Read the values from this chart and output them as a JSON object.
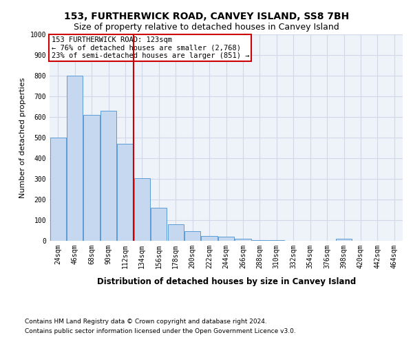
{
  "title1": "153, FURTHERWICK ROAD, CANVEY ISLAND, SS8 7BH",
  "title2": "Size of property relative to detached houses in Canvey Island",
  "xlabel": "Distribution of detached houses by size in Canvey Island",
  "ylabel": "Number of detached properties",
  "categories": [
    "24sqm",
    "46sqm",
    "68sqm",
    "90sqm",
    "112sqm",
    "134sqm",
    "156sqm",
    "178sqm",
    "200sqm",
    "222sqm",
    "244sqm",
    "266sqm",
    "288sqm",
    "310sqm",
    "332sqm",
    "354sqm",
    "376sqm",
    "398sqm",
    "420sqm",
    "442sqm",
    "464sqm"
  ],
  "values": [
    500,
    800,
    610,
    630,
    470,
    305,
    160,
    80,
    47,
    25,
    20,
    10,
    5,
    2,
    1,
    1,
    1,
    10,
    1,
    1,
    1
  ],
  "bar_color": "#c5d8f0",
  "bar_edge_color": "#5b9bd5",
  "grid_color": "#d0d8e8",
  "background_color": "#eef2f9",
  "vline_pos": 4.5,
  "vline_color": "#cc0000",
  "annotation_line1": "153 FURTHERWICK ROAD: 123sqm",
  "annotation_line2": "← 76% of detached houses are smaller (2,768)",
  "annotation_line3": "23% of semi-detached houses are larger (851) →",
  "annotation_box_color": "#cc0000",
  "ylim": [
    0,
    1000
  ],
  "yticks": [
    0,
    100,
    200,
    300,
    400,
    500,
    600,
    700,
    800,
    900,
    1000
  ],
  "footnote1": "Contains HM Land Registry data © Crown copyright and database right 2024.",
  "footnote2": "Contains public sector information licensed under the Open Government Licence v3.0.",
  "title1_fontsize": 10,
  "title2_fontsize": 9,
  "xlabel_fontsize": 8.5,
  "ylabel_fontsize": 8,
  "tick_fontsize": 7,
  "annotation_fontsize": 7.5,
  "footnote_fontsize": 6.5
}
